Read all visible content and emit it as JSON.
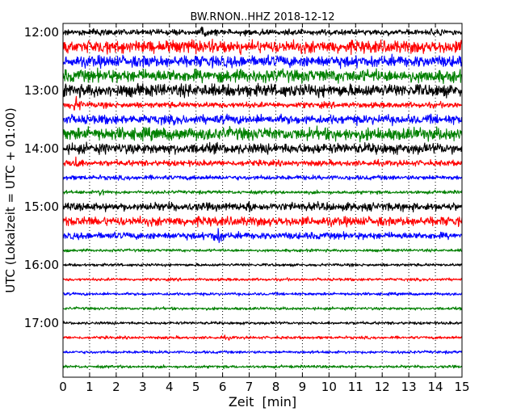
{
  "chart_data": {
    "type": "line",
    "title": "BW.RNON..HHZ 2018-12-12",
    "xlabel": "Zeit  [min]",
    "ylabel": "UTC (Lokalzeit = UTC + 01:00)",
    "xlim": [
      0,
      15
    ],
    "x_ticks": [
      "0",
      "1",
      "2",
      "3",
      "4",
      "5",
      "6",
      "7",
      "8",
      "9",
      "10",
      "11",
      "12",
      "13",
      "14",
      "15"
    ],
    "y_ticks": [
      "12:00",
      "13:00",
      "14:00",
      "15:00",
      "16:00",
      "17:00"
    ],
    "grid": "x-dotted",
    "trace_interval_min": 15,
    "trace_colors": [
      "#000000",
      "#ff0000",
      "#0000ff",
      "#008000"
    ],
    "traces": [
      {
        "start": "12:00",
        "color": "#000000",
        "amplitude": 5,
        "events": [
          {
            "t": 5.3,
            "amp": 9
          },
          {
            "t": 14.0,
            "amp": 7
          }
        ]
      },
      {
        "start": "12:15",
        "color": "#ff0000",
        "amplitude": 11,
        "events": []
      },
      {
        "start": "12:30",
        "color": "#0000ff",
        "amplitude": 10,
        "events": [
          {
            "t": 3.2,
            "amp": 12
          }
        ]
      },
      {
        "start": "12:45",
        "color": "#008000",
        "amplitude": 11,
        "events": []
      },
      {
        "start": "13:00",
        "color": "#000000",
        "amplitude": 11,
        "events": [
          {
            "t": 5.0,
            "amp": 12
          }
        ]
      },
      {
        "start": "13:15",
        "color": "#ff0000",
        "amplitude": 5,
        "events": [
          {
            "t": 0.5,
            "amp": 14
          }
        ]
      },
      {
        "start": "13:30",
        "color": "#0000ff",
        "amplitude": 8,
        "events": []
      },
      {
        "start": "13:45",
        "color": "#008000",
        "amplitude": 11,
        "events": []
      },
      {
        "start": "14:00",
        "color": "#000000",
        "amplitude": 9,
        "events": []
      },
      {
        "start": "14:15",
        "color": "#ff0000",
        "amplitude": 5,
        "events": [
          {
            "t": 0.5,
            "amp": 13
          }
        ]
      },
      {
        "start": "14:30",
        "color": "#0000ff",
        "amplitude": 4,
        "events": []
      },
      {
        "start": "14:45",
        "color": "#008000",
        "amplitude": 3,
        "events": [
          {
            "t": 1.5,
            "amp": 7
          }
        ]
      },
      {
        "start": "15:00",
        "color": "#000000",
        "amplitude": 7,
        "events": [
          {
            "t": 7.0,
            "amp": 10
          }
        ]
      },
      {
        "start": "15:15",
        "color": "#ff0000",
        "amplitude": 8,
        "events": []
      },
      {
        "start": "15:30",
        "color": "#0000ff",
        "amplitude": 6,
        "events": [
          {
            "t": 5.8,
            "amp": 15
          }
        ]
      },
      {
        "start": "15:45",
        "color": "#008000",
        "amplitude": 2.5,
        "events": []
      },
      {
        "start": "16:00",
        "color": "#000000",
        "amplitude": 2.5,
        "events": []
      },
      {
        "start": "16:15",
        "color": "#ff0000",
        "amplitude": 2.5,
        "events": []
      },
      {
        "start": "16:30",
        "color": "#0000ff",
        "amplitude": 2.5,
        "events": []
      },
      {
        "start": "16:45",
        "color": "#008000",
        "amplitude": 2.5,
        "events": []
      },
      {
        "start": "17:00",
        "color": "#000000",
        "amplitude": 2.5,
        "events": []
      },
      {
        "start": "17:15",
        "color": "#ff0000",
        "amplitude": 2.5,
        "events": [
          {
            "t": 6.2,
            "amp": 4
          }
        ]
      },
      {
        "start": "17:30",
        "color": "#0000ff",
        "amplitude": 2.5,
        "events": []
      },
      {
        "start": "17:45",
        "color": "#008000",
        "amplitude": 2.5,
        "events": []
      }
    ]
  }
}
